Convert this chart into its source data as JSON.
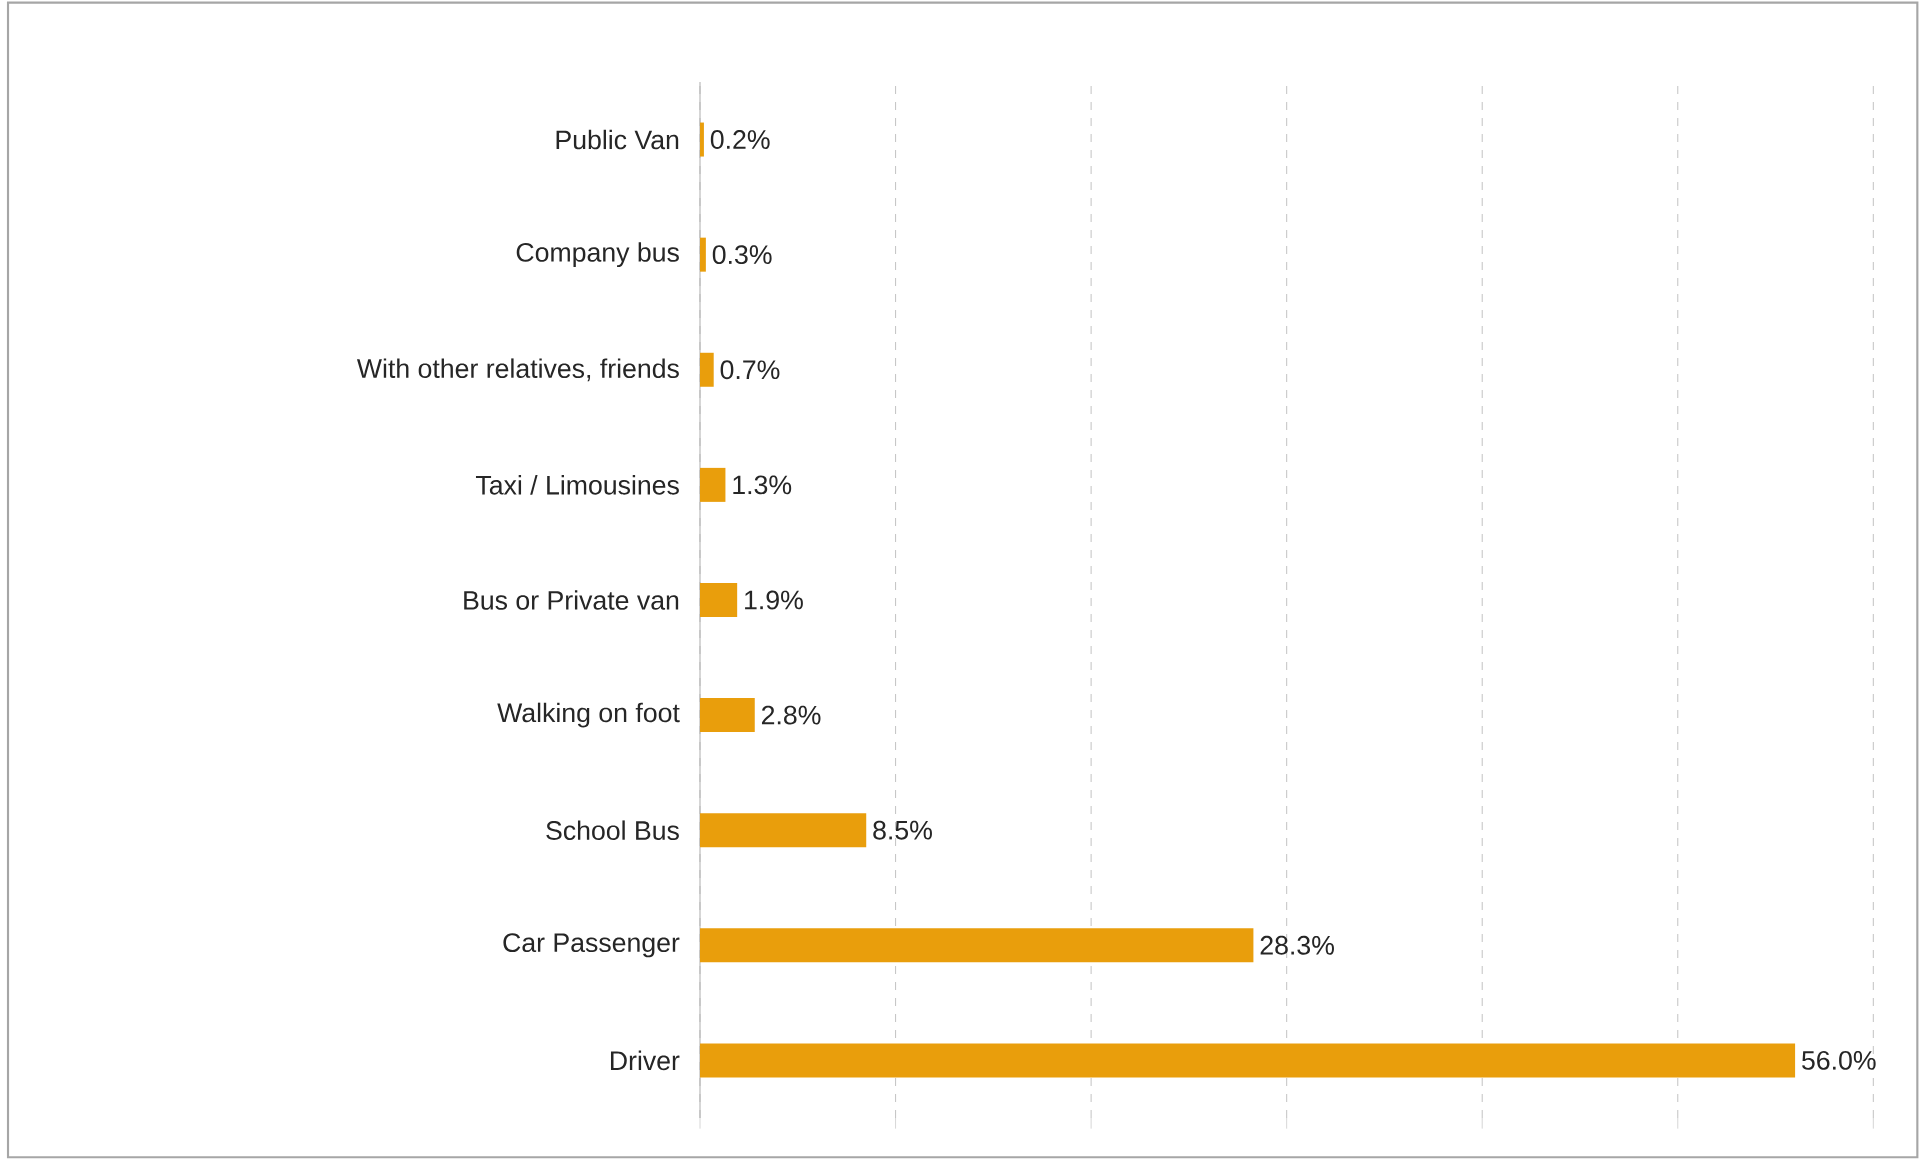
{
  "chart_data": {
    "type": "bar",
    "orientation": "horizontal",
    "categories": [
      "Public Van",
      "Company bus",
      "With other relatives, friends",
      "Taxi / Limousines",
      "Bus or Private van",
      "Walking on foot",
      "School Bus",
      "Car Passenger",
      "Driver"
    ],
    "values": [
      0.2,
      0.3,
      0.7,
      1.3,
      1.9,
      2.8,
      8.5,
      28.3,
      56.0
    ],
    "value_labels": [
      "0.2%",
      "0.3%",
      "0.7%",
      "1.3%",
      "1.9%",
      "2.8%",
      "8.5%",
      "28.3%",
      "56.0%"
    ],
    "color": "#e99e0c",
    "xlim": [
      0,
      60
    ],
    "xticks": [
      {
        "value": 0,
        "label": null
      },
      {
        "value": 10,
        "label": null
      },
      {
        "value": 20,
        "label": null
      },
      {
        "value": 30,
        "label": null
      },
      {
        "value": 40,
        "label": null
      },
      {
        "value": 50,
        "label": null
      },
      {
        "value": 60,
        "label": null
      }
    ],
    "grid": "x",
    "tick_labels": "y"
  }
}
